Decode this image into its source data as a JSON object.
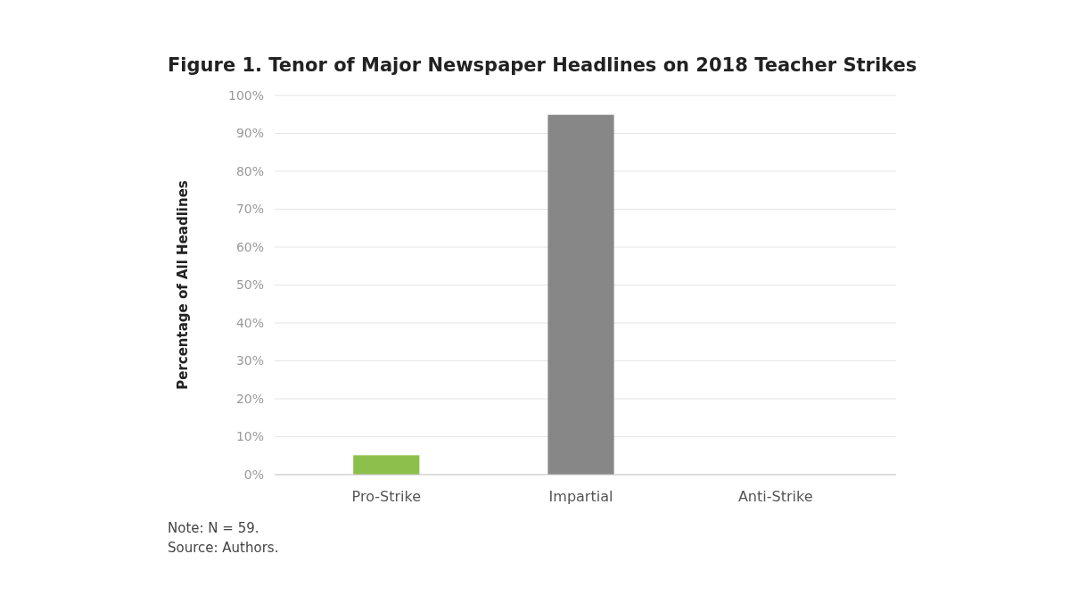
{
  "chart_data": {
    "type": "bar",
    "title": "Figure 1. Tenor of Major Newspaper Headlines on 2018 Teacher Strikes",
    "ylabel": "Percentage of All Headlines",
    "categories": [
      "Pro-Strike",
      "Impartial",
      "Anti-Strike"
    ],
    "values": [
      5.1,
      94.9,
      0
    ],
    "colors": [
      "#8dc04a",
      "#878787",
      "#878787"
    ],
    "ylim": [
      0,
      100
    ],
    "yticks": [
      {
        "value": 0,
        "label": "0%"
      },
      {
        "value": 10,
        "label": "10%"
      },
      {
        "value": 20,
        "label": "20%"
      },
      {
        "value": 30,
        "label": "30%"
      },
      {
        "value": 40,
        "label": "40%"
      },
      {
        "value": 50,
        "label": "50%"
      },
      {
        "value": 60,
        "label": "60%"
      },
      {
        "value": 70,
        "label": "70%"
      },
      {
        "value": 80,
        "label": "80%"
      },
      {
        "value": 90,
        "label": "90%"
      },
      {
        "value": 100,
        "label": "100%"
      }
    ],
    "grid": "y",
    "annotations": [
      "Note: N = 59.",
      "Source: Authors."
    ]
  }
}
